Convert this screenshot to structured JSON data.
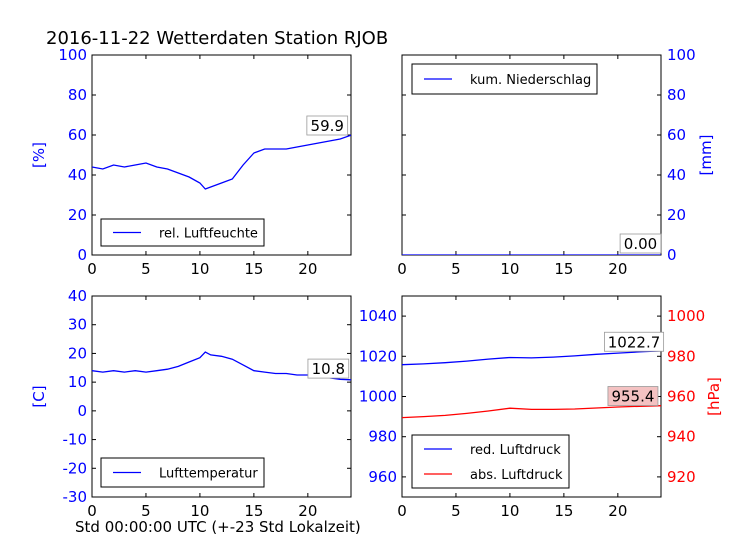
{
  "title": "2016-11-22 Wetterdaten Station RJOB",
  "x_caption": "Std 00:00:00 UTC (+-23 Std Lokalzeit)",
  "colors": {
    "blue": "#0000ff",
    "red": "#ff0000",
    "annotation_red_bg": "#f4c2c2"
  },
  "chart_data": [
    {
      "type": "line",
      "xlim": [
        0,
        24
      ],
      "xticks": [
        0,
        5,
        10,
        15,
        20
      ],
      "ylim": [
        0,
        100
      ],
      "yticks": [
        0,
        20,
        40,
        60,
        80,
        100
      ],
      "ylabel": "[%]",
      "ylabel_side": "left",
      "tick_color": "blue",
      "legend_placement": "lower-left",
      "series": [
        {
          "name": "rel. Luftfeuchte",
          "color": "blue",
          "x": [
            0,
            1,
            2,
            3,
            4,
            5,
            6,
            7,
            8,
            9,
            10,
            10.5,
            11,
            12,
            13,
            14,
            15,
            16,
            17,
            18,
            19,
            20,
            21,
            22,
            23,
            24
          ],
          "y": [
            44,
            43,
            45,
            44,
            45,
            46,
            44,
            43,
            41,
            39,
            36,
            33,
            34,
            36,
            38,
            45,
            51,
            53,
            53,
            53,
            54,
            55,
            56,
            57,
            58,
            59.9
          ]
        }
      ],
      "annotations": [
        {
          "text": "59.9",
          "x": 21.8,
          "y": 62,
          "bg": "white"
        }
      ]
    },
    {
      "type": "line",
      "xlim": [
        0,
        24
      ],
      "xticks": [
        0,
        5,
        10,
        15,
        20
      ],
      "ylim": [
        0,
        100
      ],
      "yticks": [
        0,
        20,
        40,
        60,
        80,
        100
      ],
      "ylabel": "[mm]",
      "ylabel_side": "right",
      "tick_color": "blue",
      "legend_placement": "upper-left",
      "series": [
        {
          "name": "kum. Niederschlag",
          "color": "blue",
          "x": [
            0,
            24
          ],
          "y": [
            0,
            0
          ]
        }
      ],
      "annotations": [
        {
          "text": "0.00",
          "x": 22.1,
          "y": 3,
          "bg": "white"
        }
      ]
    },
    {
      "type": "line",
      "xlim": [
        0,
        24
      ],
      "xticks": [
        0,
        5,
        10,
        15,
        20
      ],
      "ylim": [
        -30,
        40
      ],
      "yticks": [
        -30,
        -20,
        -10,
        0,
        10,
        20,
        30,
        40
      ],
      "ylabel": "[C]",
      "ylabel_side": "left",
      "tick_color": "blue",
      "legend_placement": "lower-left",
      "series": [
        {
          "name": "Lufttemperatur",
          "color": "blue",
          "x": [
            0,
            1,
            2,
            3,
            4,
            5,
            6,
            7,
            8,
            9,
            10,
            10.5,
            11,
            12,
            13,
            14,
            15,
            16,
            17,
            18,
            19,
            20,
            21,
            22,
            23,
            24
          ],
          "y": [
            14,
            13.5,
            14,
            13.5,
            14,
            13.5,
            14,
            14.5,
            15.5,
            17,
            18.5,
            20.5,
            19.5,
            19,
            18,
            16,
            14,
            13.5,
            13,
            13,
            12.5,
            12.5,
            12,
            11.5,
            11,
            10.8
          ]
        }
      ],
      "annotations": [
        {
          "text": "10.8",
          "x": 21.9,
          "y": 12.8,
          "bg": "white"
        }
      ]
    },
    {
      "type": "line",
      "xlim": [
        0,
        24
      ],
      "xticks": [
        0,
        5,
        10,
        15,
        20
      ],
      "ylim": [
        950,
        1050
      ],
      "yticks": [
        960,
        980,
        1000,
        1020,
        1040
      ],
      "y2lim": [
        910,
        1010
      ],
      "y2ticks": [
        920,
        940,
        960,
        980,
        1000
      ],
      "ylabel": "",
      "y2label": "[hPa]",
      "tick_color": "blue",
      "tick_color_right": "red",
      "legend_placement": "lower-left",
      "series": [
        {
          "name": "red. Luftdruck",
          "color": "blue",
          "axis": "left",
          "x": [
            0,
            2,
            4,
            6,
            8,
            10,
            12,
            14,
            16,
            18,
            20,
            22,
            24
          ],
          "y": [
            1015.8,
            1016.2,
            1016.8,
            1017.6,
            1018.6,
            1019.4,
            1019.2,
            1019.6,
            1020.2,
            1021.0,
            1021.6,
            1022.2,
            1022.7
          ]
        },
        {
          "name": "abs. Luftdruck",
          "color": "red",
          "axis": "right",
          "x": [
            0,
            2,
            4,
            6,
            8,
            10,
            12,
            14,
            16,
            18,
            20,
            22,
            24
          ],
          "y": [
            949.5,
            950,
            950.6,
            951.6,
            952.8,
            954.2,
            953.6,
            953.6,
            953.8,
            954.3,
            954.8,
            955.1,
            955.4
          ]
        }
      ],
      "annotations": [
        {
          "text": "1022.7",
          "x": 21.5,
          "y": 1024.5,
          "axis": "left",
          "bg": "white"
        },
        {
          "text": "955.4",
          "x": 21.4,
          "y": 957.5,
          "axis": "right",
          "bg": "annotation_red_bg"
        }
      ]
    }
  ]
}
